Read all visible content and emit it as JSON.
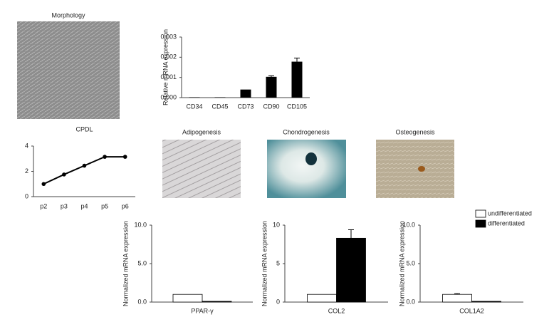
{
  "images": [
    {
      "title": "Morphology"
    },
    {
      "title": "Adipogenesis"
    },
    {
      "title": "Chondrogenesis"
    },
    {
      "title": "Osteogenesis"
    }
  ],
  "chart_data": [
    {
      "type": "bar",
      "y_label": "Relative mRNA expression",
      "categories": [
        "CD34",
        "CD45",
        "CD73",
        "CD90",
        "CD105"
      ],
      "values": [
        2e-05,
        2e-05,
        0.0004,
        0.00103,
        0.00178
      ],
      "errors": [
        0,
        0,
        0,
        5e-05,
        0.00018
      ],
      "color": "#000000",
      "ylim": [
        0,
        0.003
      ],
      "yticks": [
        {
          "value": 0,
          "label": "0.000"
        },
        0.001,
        0.002,
        0.003
      ]
    },
    {
      "type": "line",
      "title": "CPDL",
      "categories": [
        "p2",
        "p3",
        "p4",
        "p5",
        "p6"
      ],
      "values": [
        1.0,
        1.75,
        2.45,
        3.15,
        3.15
      ],
      "color": "#000000",
      "ylim": [
        0,
        4
      ],
      "yticks": [
        0,
        2,
        4
      ]
    },
    {
      "type": "grouped-bar",
      "y_label": "Normalized mRNA expression",
      "categories": [
        "PPAR-γ"
      ],
      "series": [
        {
          "color": "#ffffff",
          "values": [
            1.0
          ]
        },
        {
          "color": "#000000",
          "values": [
            0.1
          ]
        }
      ],
      "ylim": [
        0,
        10
      ],
      "yticks": [
        {
          "value": 0,
          "label": "0.0"
        },
        {
          "value": 5,
          "label": "5.0"
        },
        {
          "value": 10,
          "label": "10.0"
        }
      ]
    },
    {
      "type": "grouped-bar",
      "y_label": "Normalized mRNA expression",
      "categories": [
        "COL2"
      ],
      "series": [
        {
          "color": "#ffffff",
          "values": [
            1.0
          ]
        },
        {
          "color": "#000000",
          "values": [
            8.3
          ],
          "errors": [
            1.1
          ]
        }
      ],
      "ylim": [
        0,
        10
      ],
      "yticks": [
        0,
        5,
        10
      ]
    },
    {
      "type": "grouped-bar",
      "y_label": "Normalized mRNA expression",
      "categories": [
        "COL1A2"
      ],
      "series": [
        {
          "name": "undifferentiated",
          "color": "#ffffff",
          "values": [
            1.0
          ],
          "errors": [
            0.1
          ]
        },
        {
          "name": "differentiated",
          "color": "#000000",
          "values": [
            0.1
          ]
        }
      ],
      "ylim": [
        0,
        10
      ],
      "yticks": [
        {
          "value": 0,
          "label": "0.0"
        },
        {
          "value": 5,
          "label": "5.0"
        },
        {
          "value": 10,
          "label": "10.0"
        }
      ],
      "legend": "top-right"
    }
  ]
}
